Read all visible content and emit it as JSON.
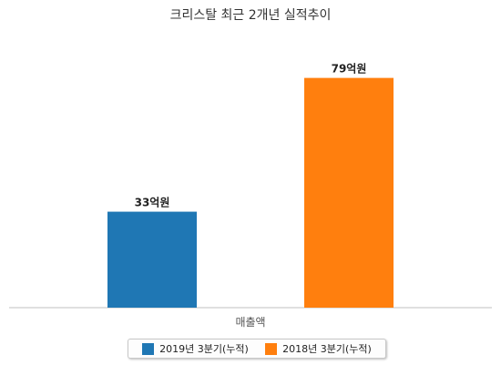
{
  "chart_data": {
    "type": "bar",
    "title": "크리스탈 최근 2개년 실적추이",
    "categories": [
      "매출액"
    ],
    "series": [
      {
        "name": "2019년 3분기(누적)",
        "values": [
          33
        ],
        "labels": [
          "33억원"
        ],
        "color": "#1f77b4"
      },
      {
        "name": "2018년 3분기(누적)",
        "values": [
          79
        ],
        "labels": [
          "79억원"
        ],
        "color": "#ff7f0e"
      }
    ],
    "xlabel": "",
    "ylabel": "",
    "ylim": [
      0,
      80
    ],
    "grid": false,
    "legend_position": "bottom"
  }
}
